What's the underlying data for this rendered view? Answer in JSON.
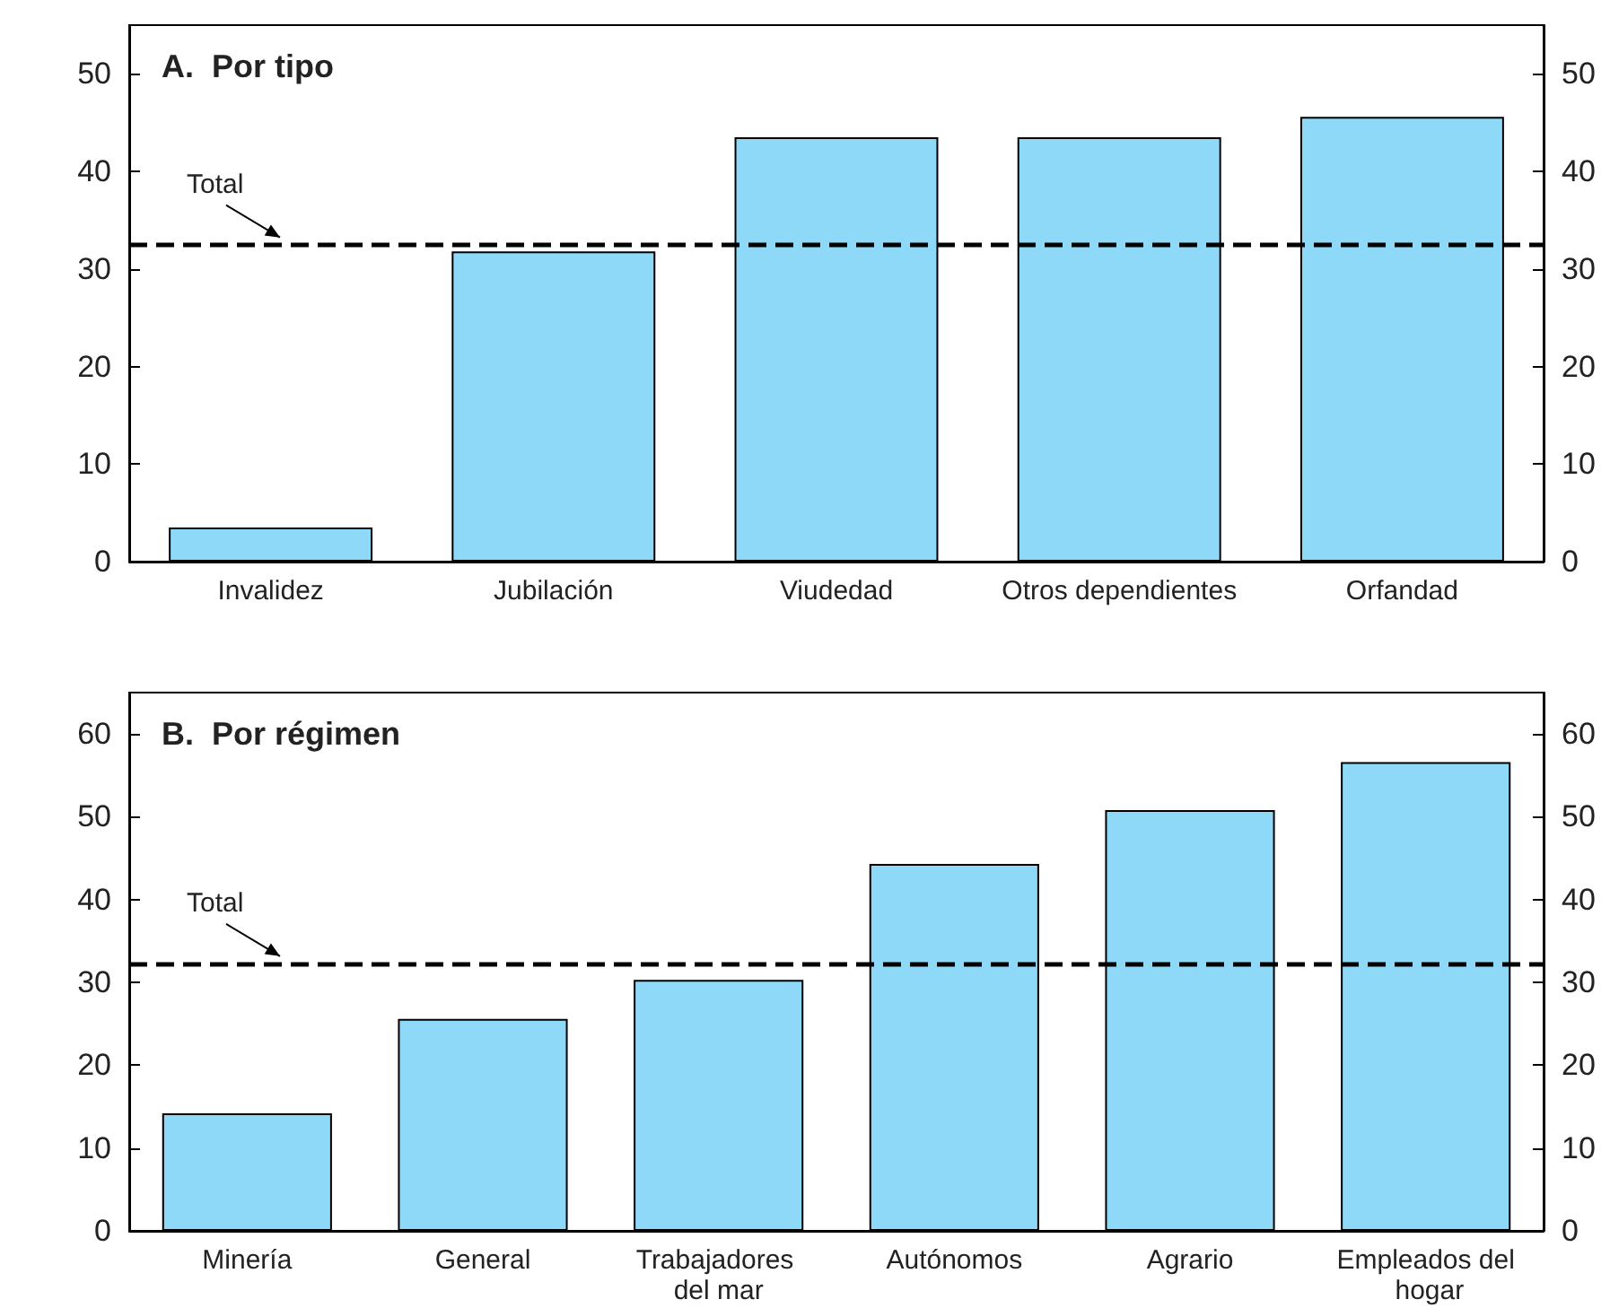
{
  "chart_data": [
    {
      "type": "bar",
      "title": "A.  Por tipo",
      "categories": [
        "Invalidez",
        "Jubilación",
        "Viudedad",
        "Otros dependientes",
        "Orfandad"
      ],
      "values": [
        3.5,
        31.8,
        43.5,
        43.5,
        45.6
      ],
      "color": "#8ed8f8",
      "ylim": [
        0,
        55
      ],
      "yticks": [
        0,
        10,
        20,
        30,
        40,
        50
      ],
      "y2lim": [
        0,
        55
      ],
      "y2ticks": [
        0,
        10,
        20,
        30,
        40,
        50
      ],
      "ref_lines": [
        {
          "axis": "y",
          "value": 32.5,
          "label": "Total",
          "color": "#000000",
          "line_style": "dashed"
        }
      ]
    },
    {
      "type": "bar",
      "title": "B.  Por régimen",
      "categories": [
        "Minería",
        "General",
        "Trabajadores del mar",
        "Autónomos",
        "Agrario",
        "Empleados del hogar"
      ],
      "values": [
        14.2,
        25.6,
        30.3,
        44.3,
        50.8,
        56.6
      ],
      "color": "#8ed8f8",
      "ylim": [
        0,
        65
      ],
      "yticks": [
        0,
        10,
        20,
        30,
        40,
        50,
        60
      ],
      "y2lim": [
        0,
        65
      ],
      "y2ticks": [
        0,
        10,
        20,
        30,
        40,
        50,
        60
      ],
      "ref_lines": [
        {
          "axis": "y",
          "value": 32.3,
          "label": "Total",
          "color": "#000000",
          "line_style": "dashed"
        }
      ]
    }
  ]
}
